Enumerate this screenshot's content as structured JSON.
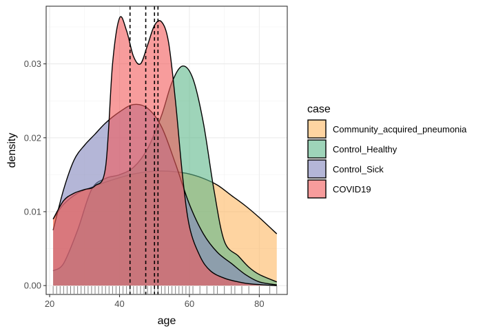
{
  "chart_data": {
    "type": "area",
    "title": "",
    "xlabel": "age",
    "ylabel": "density",
    "xlim": [
      19,
      88
    ],
    "ylim": [
      -0.0012,
      0.0378
    ],
    "x_ticks": [
      20,
      40,
      60,
      80
    ],
    "y_ticks": [
      0.0,
      0.01,
      0.02,
      0.03
    ],
    "y_tick_labels": [
      "0.00",
      "0.01",
      "0.02",
      "0.03"
    ],
    "grid": true,
    "legend": {
      "title": "case",
      "placement": "right"
    },
    "series": [
      {
        "name": "Community_acquired_pneumonia",
        "color": "#FDB863",
        "x": [
          21,
          24,
          28,
          32,
          36,
          40,
          44,
          48,
          52,
          56,
          60,
          64,
          68,
          72,
          76,
          80,
          85
        ],
        "y": [
          0.009,
          0.011,
          0.0125,
          0.0133,
          0.014,
          0.0146,
          0.0151,
          0.0154,
          0.0155,
          0.0154,
          0.0151,
          0.0145,
          0.0136,
          0.0122,
          0.0108,
          0.0092,
          0.007
        ]
      },
      {
        "name": "Control_Healthy",
        "color": "#5EB88A",
        "x": [
          21,
          24,
          28,
          32,
          36,
          40,
          44,
          48,
          52,
          55,
          58,
          61,
          64,
          67,
          70,
          74,
          77,
          80,
          85
        ],
        "y": [
          0.002,
          0.003,
          0.0075,
          0.013,
          0.0145,
          0.015,
          0.016,
          0.0185,
          0.023,
          0.0275,
          0.0297,
          0.028,
          0.022,
          0.013,
          0.006,
          0.004,
          0.0025,
          0.0015,
          0.0005
        ]
      },
      {
        "name": "Control_Sick",
        "color": "#8286BC",
        "x": [
          21,
          24,
          27,
          30,
          33,
          36,
          40,
          44,
          48,
          52,
          56,
          60,
          64,
          68,
          72,
          76,
          80,
          85
        ],
        "y": [
          0.0075,
          0.013,
          0.017,
          0.019,
          0.0205,
          0.022,
          0.0235,
          0.0245,
          0.024,
          0.0215,
          0.0165,
          0.011,
          0.007,
          0.0045,
          0.003,
          0.0015,
          0.0005,
          0.0001
        ]
      },
      {
        "name": "COVID19",
        "color": "#F15A5A",
        "x": [
          21,
          24,
          27,
          30,
          33,
          36,
          38,
          40,
          42,
          44,
          46,
          48,
          50,
          52,
          54,
          56,
          58,
          60,
          63,
          66,
          70,
          74,
          78,
          85
        ],
        "y": [
          0.009,
          0.0115,
          0.0125,
          0.013,
          0.0135,
          0.016,
          0.03,
          0.0362,
          0.0345,
          0.031,
          0.03,
          0.0325,
          0.0352,
          0.0357,
          0.033,
          0.025,
          0.015,
          0.008,
          0.004,
          0.002,
          0.001,
          0.0005,
          0.0002,
          0.0
        ]
      }
    ],
    "vlines": [
      43,
      47.5,
      50,
      51
    ],
    "rug": [
      21,
      22,
      23,
      24,
      25,
      26,
      27,
      28,
      29,
      30,
      31,
      32,
      33,
      34,
      35,
      36,
      37,
      38,
      39,
      40,
      41,
      42,
      43,
      44,
      45,
      46,
      47,
      48,
      49,
      50,
      51,
      52,
      53,
      54,
      55,
      56,
      57,
      58,
      59,
      60,
      61,
      63,
      65,
      67,
      68,
      70,
      72,
      73,
      75,
      77,
      80,
      83,
      85
    ]
  }
}
